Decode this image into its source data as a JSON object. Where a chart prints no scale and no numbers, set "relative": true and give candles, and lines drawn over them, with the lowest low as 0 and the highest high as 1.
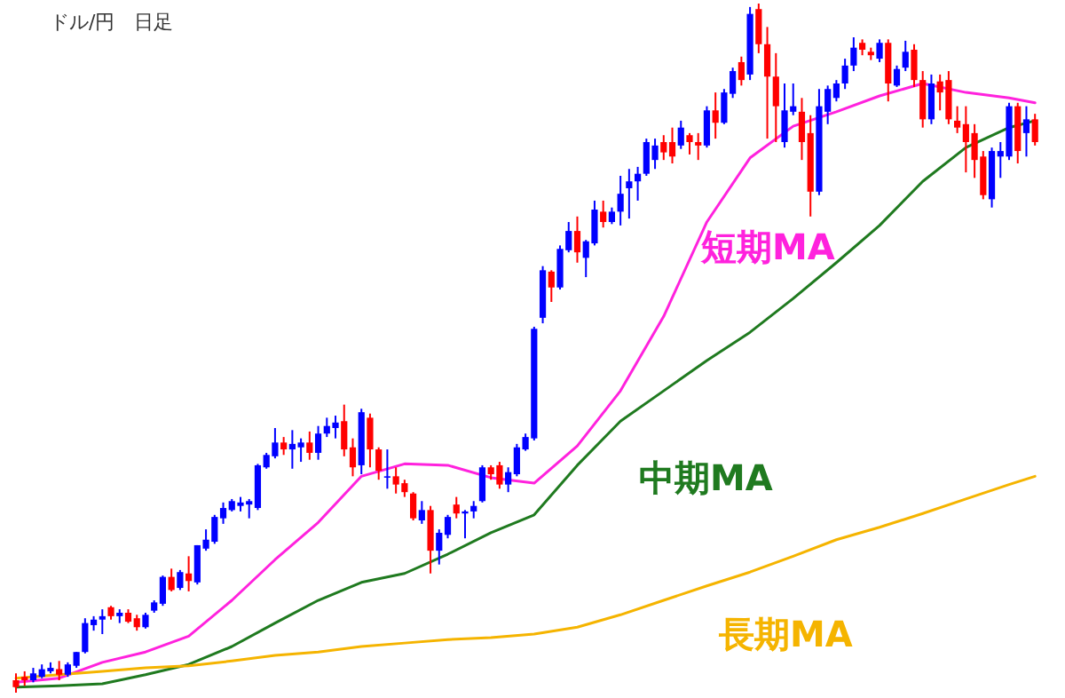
{
  "chart_data": {
    "type": "candlestick",
    "title": "ドル/円　日足",
    "relative": true,
    "categories": [
      null,
      null,
      null,
      null,
      null,
      null,
      null,
      null,
      null,
      null,
      null,
      null,
      null,
      null,
      null,
      null,
      null,
      null,
      null,
      null,
      null,
      null,
      null,
      null,
      null,
      null,
      null,
      null,
      null,
      null,
      null,
      null,
      null,
      null,
      null,
      null,
      null,
      null,
      null,
      null,
      null,
      null,
      null,
      null,
      null,
      null,
      null,
      null,
      null,
      null,
      null,
      null,
      null,
      null,
      null,
      null,
      null,
      null,
      null,
      null,
      null,
      null,
      null,
      null,
      null,
      null,
      null,
      null,
      null,
      null,
      null,
      null,
      null,
      null,
      null,
      null,
      null,
      null,
      null,
      null,
      null,
      null,
      null,
      null,
      null,
      null,
      null,
      null,
      null,
      null,
      null,
      null,
      null,
      null,
      null,
      null,
      null,
      null,
      null,
      null,
      null,
      null,
      null,
      null,
      null,
      null,
      null,
      null,
      null,
      null,
      null,
      null,
      null,
      null,
      null,
      null,
      null,
      null,
      null
    ],
    "ohlc": [
      [
        0.018,
        0.028,
        0,
        0.008
      ],
      [
        0.023,
        0.031,
        0.01,
        0.018
      ],
      [
        0.018,
        0.036,
        0.015,
        0.028
      ],
      [
        0.023,
        0.041,
        0.021,
        0.034
      ],
      [
        0.031,
        0.044,
        0.028,
        0.036
      ],
      [
        0.034,
        0.046,
        0.018,
        0.026
      ],
      [
        0.026,
        0.044,
        0.023,
        0.041
      ],
      [
        0.039,
        0.059,
        0.036,
        0.059
      ],
      [
        0.059,
        0.108,
        0.057,
        0.101
      ],
      [
        0.098,
        0.111,
        0.09,
        0.106
      ],
      [
        0.106,
        0.121,
        0.085,
        0.111
      ],
      [
        0.124,
        0.126,
        0.106,
        0.111
      ],
      [
        0.111,
        0.121,
        0.101,
        0.116
      ],
      [
        0.116,
        0.121,
        0.101,
        0.103
      ],
      [
        0.108,
        0.113,
        0.09,
        0.095
      ],
      [
        0.095,
        0.116,
        0.093,
        0.113
      ],
      [
        0.119,
        0.134,
        0.116,
        0.131
      ],
      [
        0.129,
        0.17,
        0.126,
        0.168
      ],
      [
        0.168,
        0.18,
        0.147,
        0.149
      ],
      [
        0.152,
        0.178,
        0.149,
        0.175
      ],
      [
        0.173,
        0.198,
        0.147,
        0.162
      ],
      [
        0.16,
        0.214,
        0.157,
        0.214
      ],
      [
        0.209,
        0.237,
        0.206,
        0.222
      ],
      [
        0.219,
        0.258,
        0.216,
        0.255
      ],
      [
        0.253,
        0.276,
        0.245,
        0.268
      ],
      [
        0.265,
        0.281,
        0.263,
        0.278
      ],
      [
        0.271,
        0.284,
        0.263,
        0.276
      ],
      [
        0.273,
        0.281,
        0.253,
        0.278
      ],
      [
        0.268,
        0.332,
        0.265,
        0.33
      ],
      [
        0.327,
        0.348,
        0.325,
        0.345
      ],
      [
        0.343,
        0.384,
        0.34,
        0.363
      ],
      [
        0.363,
        0.371,
        0.345,
        0.353
      ],
      [
        0.353,
        0.381,
        0.325,
        0.361
      ],
      [
        0.356,
        0.369,
        0.335,
        0.363
      ],
      [
        0.363,
        0.379,
        0.338,
        0.348
      ],
      [
        0.348,
        0.387,
        0.338,
        0.376
      ],
      [
        0.376,
        0.399,
        0.371,
        0.387
      ],
      [
        0.384,
        0.402,
        0.369,
        0.392
      ],
      [
        0.394,
        0.418,
        0.343,
        0.353
      ],
      [
        0.356,
        0.369,
        0.314,
        0.327
      ],
      [
        0.33,
        0.412,
        0.317,
        0.407
      ],
      [
        0.399,
        0.405,
        0.327,
        0.353
      ],
      [
        0.353,
        0.356,
        0.309,
        0.322
      ],
      [
        0.312,
        0.353,
        0.296,
        0.314
      ],
      [
        0.314,
        0.327,
        0.289,
        0.302
      ],
      [
        0.304,
        0.309,
        0.284,
        0.291
      ],
      [
        0.289,
        0.291,
        0.25,
        0.253
      ],
      [
        0.25,
        0.278,
        0.245,
        0.265
      ],
      [
        0.265,
        0.271,
        0.173,
        0.206
      ],
      [
        0.206,
        0.237,
        0.186,
        0.232
      ],
      [
        0.229,
        0.258,
        0.224,
        0.255
      ],
      [
        0.273,
        0.284,
        0.253,
        0.26
      ],
      [
        0.26,
        0.265,
        0.224,
        0.263
      ],
      [
        0.263,
        0.278,
        0.253,
        0.271
      ],
      [
        0.278,
        0.33,
        0.276,
        0.327
      ],
      [
        0.327,
        0.33,
        0.309,
        0.317
      ],
      [
        0.33,
        0.335,
        0.296,
        0.302
      ],
      [
        0.302,
        0.327,
        0.291,
        0.32
      ],
      [
        0.317,
        0.361,
        0.314,
        0.356
      ],
      [
        0.353,
        0.376,
        0.351,
        0.371
      ],
      [
        0.369,
        0.531,
        0.366,
        0.528
      ],
      [
        0.544,
        0.619,
        0.536,
        0.613
      ],
      [
        0.611,
        0.613,
        0.567,
        0.588
      ],
      [
        0.588,
        0.649,
        0.585,
        0.644
      ],
      [
        0.642,
        0.683,
        0.639,
        0.67
      ],
      [
        0.67,
        0.691,
        0.624,
        0.639
      ],
      [
        0.631,
        0.657,
        0.603,
        0.655
      ],
      [
        0.652,
        0.714,
        0.649,
        0.701
      ],
      [
        0.698,
        0.714,
        0.675,
        0.683
      ],
      [
        0.683,
        0.704,
        0.68,
        0.698
      ],
      [
        0.698,
        0.75,
        0.678,
        0.724
      ],
      [
        0.732,
        0.76,
        0.688,
        0.742
      ],
      [
        0.742,
        0.763,
        0.714,
        0.753
      ],
      [
        0.753,
        0.804,
        0.75,
        0.799
      ],
      [
        0.773,
        0.804,
        0.76,
        0.794
      ],
      [
        0.799,
        0.809,
        0.773,
        0.784
      ],
      [
        0.799,
        0.82,
        0.768,
        0.778
      ],
      [
        0.794,
        0.83,
        0.789,
        0.82
      ],
      [
        0.809,
        0.812,
        0.781,
        0.799
      ],
      [
        0.799,
        0.812,
        0.773,
        0.794
      ],
      [
        0.794,
        0.851,
        0.791,
        0.845
      ],
      [
        0.845,
        0.871,
        0.804,
        0.827
      ],
      [
        0.827,
        0.876,
        0.825,
        0.871
      ],
      [
        0.869,
        0.907,
        0.863,
        0.902
      ],
      [
        0.915,
        0.923,
        0.881,
        0.889
      ],
      [
        0.897,
        0.995,
        0.889,
        0.985
      ],
      [
        0.992,
        1,
        0.928,
        0.941
      ],
      [
        0.941,
        0.966,
        0.804,
        0.894
      ],
      [
        0.894,
        0.928,
        0.799,
        0.851
      ],
      [
        0.799,
        0.884,
        0.791,
        0.845
      ],
      [
        0.843,
        0.884,
        0.838,
        0.851
      ],
      [
        0.843,
        0.863,
        0.773,
        0.799
      ],
      [
        0.812,
        0.838,
        0.691,
        0.727
      ],
      [
        0.727,
        0.876,
        0.722,
        0.851
      ],
      [
        0.843,
        0.881,
        0.825,
        0.876
      ],
      [
        0.863,
        0.889,
        0.858,
        0.884
      ],
      [
        0.884,
        0.92,
        0.876,
        0.91
      ],
      [
        0.91,
        0.951,
        0.902,
        0.936
      ],
      [
        0.943,
        0.948,
        0.925,
        0.933
      ],
      [
        0.93,
        0.936,
        0.918,
        0.925
      ],
      [
        0.92,
        0.948,
        0.915,
        0.943
      ],
      [
        0.943,
        0.948,
        0.858,
        0.884
      ],
      [
        0.881,
        0.91,
        0.879,
        0.905
      ],
      [
        0.907,
        0.946,
        0.902,
        0.93
      ],
      [
        0.933,
        0.941,
        0.879,
        0.889
      ],
      [
        0.889,
        0.902,
        0.82,
        0.832
      ],
      [
        0.832,
        0.897,
        0.825,
        0.884
      ],
      [
        0.887,
        0.897,
        0.845,
        0.871
      ],
      [
        0.889,
        0.902,
        0.825,
        0.832
      ],
      [
        0.83,
        0.851,
        0.812,
        0.82
      ],
      [
        0.825,
        0.851,
        0.755,
        0.799
      ],
      [
        0.812,
        0.825,
        0.747,
        0.773
      ],
      [
        0.778,
        0.786,
        0.716,
        0.722
      ],
      [
        0.716,
        0.791,
        0.704,
        0.786
      ],
      [
        0.778,
        0.799,
        0.747,
        0.786
      ],
      [
        0.778,
        0.856,
        0.773,
        0.851
      ],
      [
        0.851,
        0.856,
        0.768,
        0.786
      ],
      [
        0.812,
        0.851,
        0.778,
        0.832
      ],
      [
        0.832,
        0.84,
        0.794,
        0.799
      ]
    ],
    "colors": [
      "#ff0000",
      "#ff0000",
      "#0000ff",
      "#0000ff",
      "#0000ff",
      "#ff0000",
      "#0000ff",
      "#0000ff",
      "#0000ff",
      "#0000ff",
      "#0000ff",
      "#ff0000",
      "#0000ff",
      "#ff0000",
      "#ff0000",
      "#0000ff",
      "#0000ff",
      "#0000ff",
      "#ff0000",
      "#0000ff",
      "#ff0000",
      "#0000ff",
      "#0000ff",
      "#0000ff",
      "#0000ff",
      "#0000ff",
      "#0000ff",
      "#0000ff",
      "#0000ff",
      "#0000ff",
      "#0000ff",
      "#ff0000",
      "#0000ff",
      "#0000ff",
      "#ff0000",
      "#0000ff",
      "#0000ff",
      "#0000ff",
      "#ff0000",
      "#ff0000",
      "#0000ff",
      "#ff0000",
      "#ff0000",
      "#0000ff",
      "#ff0000",
      "#ff0000",
      "#ff0000",
      "#0000ff",
      "#ff0000",
      "#0000ff",
      "#0000ff",
      "#ff0000",
      "#0000ff",
      "#0000ff",
      "#0000ff",
      "#ff0000",
      "#ff0000",
      "#0000ff",
      "#0000ff",
      "#0000ff",
      "#0000ff",
      "#0000ff",
      "#ff0000",
      "#0000ff",
      "#0000ff",
      "#ff0000",
      "#0000ff",
      "#0000ff",
      "#ff0000",
      "#0000ff",
      "#0000ff",
      "#0000ff",
      "#0000ff",
      "#0000ff",
      "#0000ff",
      "#ff0000",
      "#ff0000",
      "#0000ff",
      "#ff0000",
      "#ff0000",
      "#0000ff",
      "#ff0000",
      "#0000ff",
      "#0000ff",
      "#ff0000",
      "#0000ff",
      "#ff0000",
      "#ff0000",
      "#ff0000",
      "#0000ff",
      "#0000ff",
      "#ff0000",
      "#ff0000",
      "#0000ff",
      "#0000ff",
      "#0000ff",
      "#0000ff",
      "#0000ff",
      "#ff0000",
      "#ff0000",
      "#0000ff",
      "#ff0000",
      "#0000ff",
      "#0000ff",
      "#ff0000",
      "#ff0000",
      "#0000ff",
      "#ff0000",
      "#ff0000",
      "#ff0000",
      "#ff0000",
      "#ff0000",
      "#ff0000",
      "#0000ff",
      "#0000ff",
      "#0000ff",
      "#ff0000",
      "#0000ff",
      "#ff0000"
    ],
    "series": [
      {
        "name": "短期MA",
        "type": "line",
        "color": "#ff22dd",
        "values": [
          0.015,
          null,
          null,
          null,
          null,
          0.021,
          null,
          null,
          null,
          null,
          0.044,
          null,
          null,
          null,
          null,
          0.059,
          null,
          null,
          null,
          null,
          0.082,
          null,
          null,
          null,
          null,
          0.134,
          null,
          null,
          null,
          null,
          0.193,
          null,
          null,
          null,
          null,
          0.247,
          null,
          null,
          null,
          null,
          0.314,
          null,
          null,
          null,
          null,
          0.332,
          null,
          null,
          null,
          null,
          0.33,
          null,
          null,
          null,
          null,
          0.312,
          null,
          null,
          null,
          null,
          0.304,
          null,
          null,
          null,
          null,
          0.358,
          null,
          null,
          null,
          null,
          0.438,
          null,
          null,
          null,
          null,
          0.546,
          null,
          null,
          null,
          null,
          0.683,
          null,
          null,
          null,
          null,
          0.776,
          null,
          null,
          null,
          null,
          0.822,
          null,
          null,
          null,
          null,
          0.843,
          null,
          null,
          null,
          null,
          0.866,
          null,
          null,
          null,
          null,
          0.884,
          null,
          null,
          null,
          null,
          0.871,
          null,
          null,
          null,
          null,
          0.863,
          null,
          null,
          0.856
        ]
      },
      {
        "name": "中期MA",
        "type": "line",
        "color": "#1f7a1f",
        "values": [
          0.008,
          null,
          null,
          null,
          null,
          0.01,
          null,
          null,
          null,
          null,
          0.013,
          null,
          null,
          null,
          null,
          0.026,
          null,
          null,
          null,
          null,
          0.041,
          null,
          null,
          null,
          null,
          0.067,
          null,
          null,
          null,
          null,
          0.101,
          null,
          null,
          null,
          null,
          0.134,
          null,
          null,
          null,
          null,
          0.16,
          null,
          null,
          null,
          null,
          0.173,
          null,
          null,
          null,
          null,
          0.201,
          null,
          null,
          null,
          null,
          0.232,
          null,
          null,
          null,
          null,
          0.258,
          null,
          null,
          null,
          null,
          0.33,
          null,
          null,
          null,
          null,
          0.394,
          null,
          null,
          null,
          null,
          0.438,
          null,
          null,
          null,
          null,
          0.482,
          null,
          null,
          null,
          null,
          0.523,
          null,
          null,
          null,
          null,
          0.572,
          null,
          null,
          null,
          null,
          0.624,
          null,
          null,
          null,
          null,
          0.678,
          null,
          null,
          null,
          null,
          0.742,
          null,
          null,
          null,
          null,
          0.791,
          null,
          null,
          null,
          null,
          0.82,
          null,
          null,
          0.83
        ]
      },
      {
        "name": "長期MA",
        "type": "line",
        "color": "#f5b400",
        "values": [
          0.021,
          null,
          null,
          null,
          null,
          0.026,
          null,
          null,
          null,
          null,
          0.031,
          null,
          null,
          null,
          null,
          0.036,
          null,
          null,
          null,
          null,
          0.039,
          null,
          null,
          null,
          null,
          0.046,
          null,
          null,
          null,
          null,
          0.054,
          null,
          null,
          null,
          null,
          0.059,
          null,
          null,
          null,
          null,
          0.067,
          null,
          null,
          null,
          null,
          0.072,
          null,
          null,
          null,
          null,
          0.077,
          null,
          null,
          null,
          null,
          0.08,
          null,
          null,
          null,
          null,
          0.085,
          null,
          null,
          null,
          null,
          0.095,
          null,
          null,
          null,
          null,
          0.113,
          null,
          null,
          null,
          null,
          0.134,
          null,
          null,
          null,
          null,
          0.155,
          null,
          null,
          null,
          null,
          0.175,
          null,
          null,
          null,
          null,
          0.198,
          null,
          null,
          null,
          null,
          0.222,
          null,
          null,
          null,
          null,
          0.24,
          null,
          null,
          null,
          null,
          0.26,
          null,
          null,
          null,
          null,
          0.281,
          null,
          null,
          null,
          null,
          0.302,
          null,
          null,
          0.314
        ]
      }
    ]
  }
}
